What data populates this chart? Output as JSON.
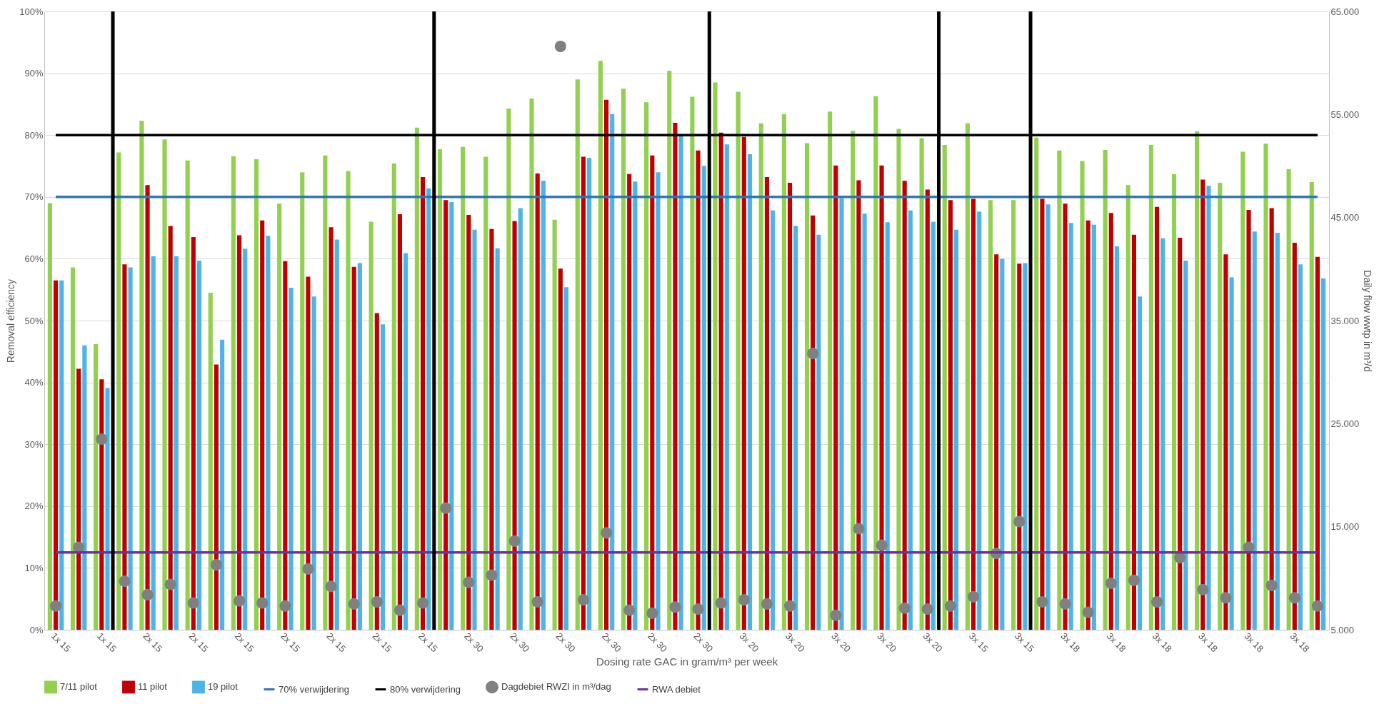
{
  "chart_data": {
    "type": "bar",
    "xlabel": "Dosing rate GAC in gram/m³ per week",
    "ylabel": "Removal efficiency",
    "y2label": "Daily flow wwtp in m³/d",
    "categories": [
      "1x 15",
      null,
      "1x 15",
      null,
      "2x 15",
      null,
      "2x 15",
      null,
      "2x 15",
      null,
      "2x 15",
      null,
      "2x 15",
      null,
      "2x 15",
      null,
      "2x 15",
      null,
      "2x 30",
      null,
      "2x 30",
      null,
      "2x 30",
      null,
      "2x 30",
      null,
      "2x 30",
      null,
      "2x 30",
      null,
      "3x 20",
      null,
      "3x 20",
      null,
      "3x 20",
      null,
      "3x 20",
      null,
      "3x 20",
      null,
      "3x 15",
      null,
      "3x 15",
      null,
      "3x 18",
      null,
      "3x 18",
      null,
      "3x 18",
      null,
      "3x 18",
      null,
      "3x 18",
      null,
      "3x 18",
      null
    ],
    "series": [
      {
        "name": "7/11 pilot",
        "color": "#92d050",
        "values": [
          69.0,
          58.6,
          46.2,
          77.2,
          82.3,
          79.3,
          75.9,
          54.5,
          76.6,
          76.1,
          68.9,
          74.0,
          76.7,
          74.2,
          66.0,
          75.4,
          81.2,
          77.7,
          78.1,
          76.5,
          84.3,
          85.9,
          66.3,
          89.0,
          92.0,
          87.5,
          85.3,
          90.4,
          86.2,
          88.5,
          87.0,
          81.9,
          83.4,
          78.7,
          83.8,
          80.7,
          86.3,
          81.0,
          79.5,
          78.4,
          81.9,
          69.5,
          69.5,
          79.6,
          77.5,
          75.8,
          77.6,
          71.9,
          78.4,
          73.7,
          80.6,
          72.3,
          77.3,
          78.6,
          74.5,
          72.4
        ]
      },
      {
        "name": "11 pilot",
        "color": "#c00000",
        "values": [
          56.5,
          42.2,
          40.5,
          59.1,
          71.9,
          65.3,
          63.5,
          42.9,
          63.8,
          66.2,
          59.6,
          57.1,
          65.1,
          58.7,
          51.2,
          67.2,
          73.2,
          69.5,
          67.1,
          64.8,
          66.1,
          73.8,
          58.4,
          76.5,
          85.7,
          73.7,
          76.7,
          82.0,
          77.5,
          80.4,
          79.7,
          73.2,
          72.3,
          67.0,
          75.1,
          72.7,
          75.1,
          72.6,
          71.2,
          69.5,
          69.7,
          60.7,
          59.2,
          69.7,
          68.9,
          66.2,
          67.4,
          63.9,
          68.4,
          63.4,
          72.8,
          60.7,
          67.9,
          68.2,
          62.6,
          60.3
        ]
      },
      {
        "name": "19 pilot",
        "color": "#4db3e8",
        "values": [
          56.5,
          46.0,
          39.1,
          58.6,
          60.4,
          60.4,
          59.7,
          46.9,
          61.6,
          63.7,
          55.3,
          53.9,
          63.1,
          59.3,
          49.4,
          60.9,
          71.4,
          69.2,
          64.7,
          61.7,
          68.2,
          72.6,
          55.4,
          76.3,
          83.4,
          72.5,
          74.0,
          79.8,
          75.0,
          78.5,
          76.9,
          67.8,
          65.3,
          63.9,
          69.8,
          67.3,
          65.9,
          67.8,
          66.0,
          64.7,
          67.6,
          60.0,
          59.3,
          68.8,
          65.8,
          65.5,
          62.0,
          53.9,
          63.3,
          59.7,
          71.8,
          57.0,
          64.4,
          64.2,
          59.1,
          56.8
        ]
      },
      {
        "name": "70% verwijdering",
        "type": "line",
        "color": "#2e75b6",
        "values": [
          70,
          70,
          70,
          70,
          70,
          70,
          70,
          70,
          70,
          70,
          70,
          70,
          70,
          70,
          70,
          70,
          70,
          70,
          70,
          70,
          70,
          70,
          70,
          70,
          70,
          70,
          70,
          70,
          70,
          70,
          70,
          70,
          70,
          70,
          70,
          70,
          70,
          70,
          70,
          70,
          70,
          70,
          70,
          70,
          70,
          70,
          70,
          70,
          70,
          70,
          70,
          70,
          70,
          70,
          70,
          70
        ]
      },
      {
        "name": "80% verwijdering",
        "type": "line",
        "color": "#000000",
        "values": [
          80,
          80,
          80,
          80,
          80,
          80,
          80,
          80,
          80,
          80,
          80,
          80,
          80,
          80,
          80,
          80,
          80,
          80,
          80,
          80,
          80,
          80,
          80,
          80,
          80,
          80,
          80,
          80,
          80,
          80,
          80,
          80,
          80,
          80,
          80,
          80,
          80,
          80,
          80,
          80,
          80,
          80,
          80,
          80,
          80,
          80,
          80,
          80,
          80,
          80,
          80,
          80,
          80,
          80,
          80,
          80
        ]
      },
      {
        "name": "Dagdebiet RWZI in m³/dag",
        "type": "scatter",
        "axis": "y2",
        "marker": "circle",
        "color": "#808080",
        "values": [
          7300,
          13000,
          23500,
          9700,
          8400,
          9400,
          7600,
          11300,
          7800,
          7600,
          7300,
          10900,
          9200,
          7500,
          7700,
          6900,
          7600,
          16800,
          9600,
          10300,
          13600,
          7700,
          61600,
          7900,
          14400,
          6900,
          6600,
          7200,
          7000,
          7600,
          7900,
          7500,
          7300,
          31800,
          6400,
          14800,
          13200,
          7100,
          7000,
          7300,
          8200,
          12400,
          15500,
          7700,
          7500,
          6700,
          9500,
          9800,
          7700,
          12000,
          8900,
          8100,
          13000,
          9300,
          8100,
          7300
        ]
      },
      {
        "name": "RWA debiet",
        "type": "line",
        "axis": "y2",
        "color": "#7030a0",
        "values": [
          12500,
          12500,
          12500,
          12500,
          12500,
          12500,
          12500,
          12500,
          12500,
          12500,
          12500,
          12500,
          12500,
          12500,
          12500,
          12500,
          12500,
          12500,
          12500,
          12500,
          12500,
          12500,
          12500,
          12500,
          12500,
          12500,
          12500,
          12500,
          12500,
          12500,
          12500,
          12500,
          12500,
          12500,
          12500,
          12500,
          12500,
          12500,
          12500,
          12500,
          12500,
          12500,
          12500,
          12500,
          12500,
          12500,
          12500,
          12500,
          12500,
          12500,
          12500,
          12500,
          12500,
          12500,
          12500,
          12500
        ]
      }
    ],
    "ylim": [
      0,
      100
    ],
    "yticks": [
      {
        "value": 0,
        "label": "0%"
      },
      {
        "value": 10,
        "label": "10%"
      },
      {
        "value": 20,
        "label": "20%"
      },
      {
        "value": 30,
        "label": "30%"
      },
      {
        "value": 40,
        "label": "40%"
      },
      {
        "value": 50,
        "label": "50%"
      },
      {
        "value": 60,
        "label": "60%"
      },
      {
        "value": 70,
        "label": "70%"
      },
      {
        "value": 80,
        "label": "80%"
      },
      {
        "value": 90,
        "label": "90%"
      },
      {
        "value": 100,
        "label": "100%"
      }
    ],
    "y2lim": [
      5000,
      65000
    ],
    "y2ticks": [
      {
        "value": 5000,
        "label": "5.000"
      },
      {
        "value": 15000,
        "label": "15.000"
      },
      {
        "value": 25000,
        "label": "25.000"
      },
      {
        "value": 35000,
        "label": "35.000"
      },
      {
        "value": 45000,
        "label": "45.000"
      },
      {
        "value": 55000,
        "label": "55.000"
      },
      {
        "value": 65000,
        "label": "65.000"
      }
    ],
    "grid": "y",
    "legend": "bottom",
    "marker": "none",
    "line_style": "solid"
  }
}
